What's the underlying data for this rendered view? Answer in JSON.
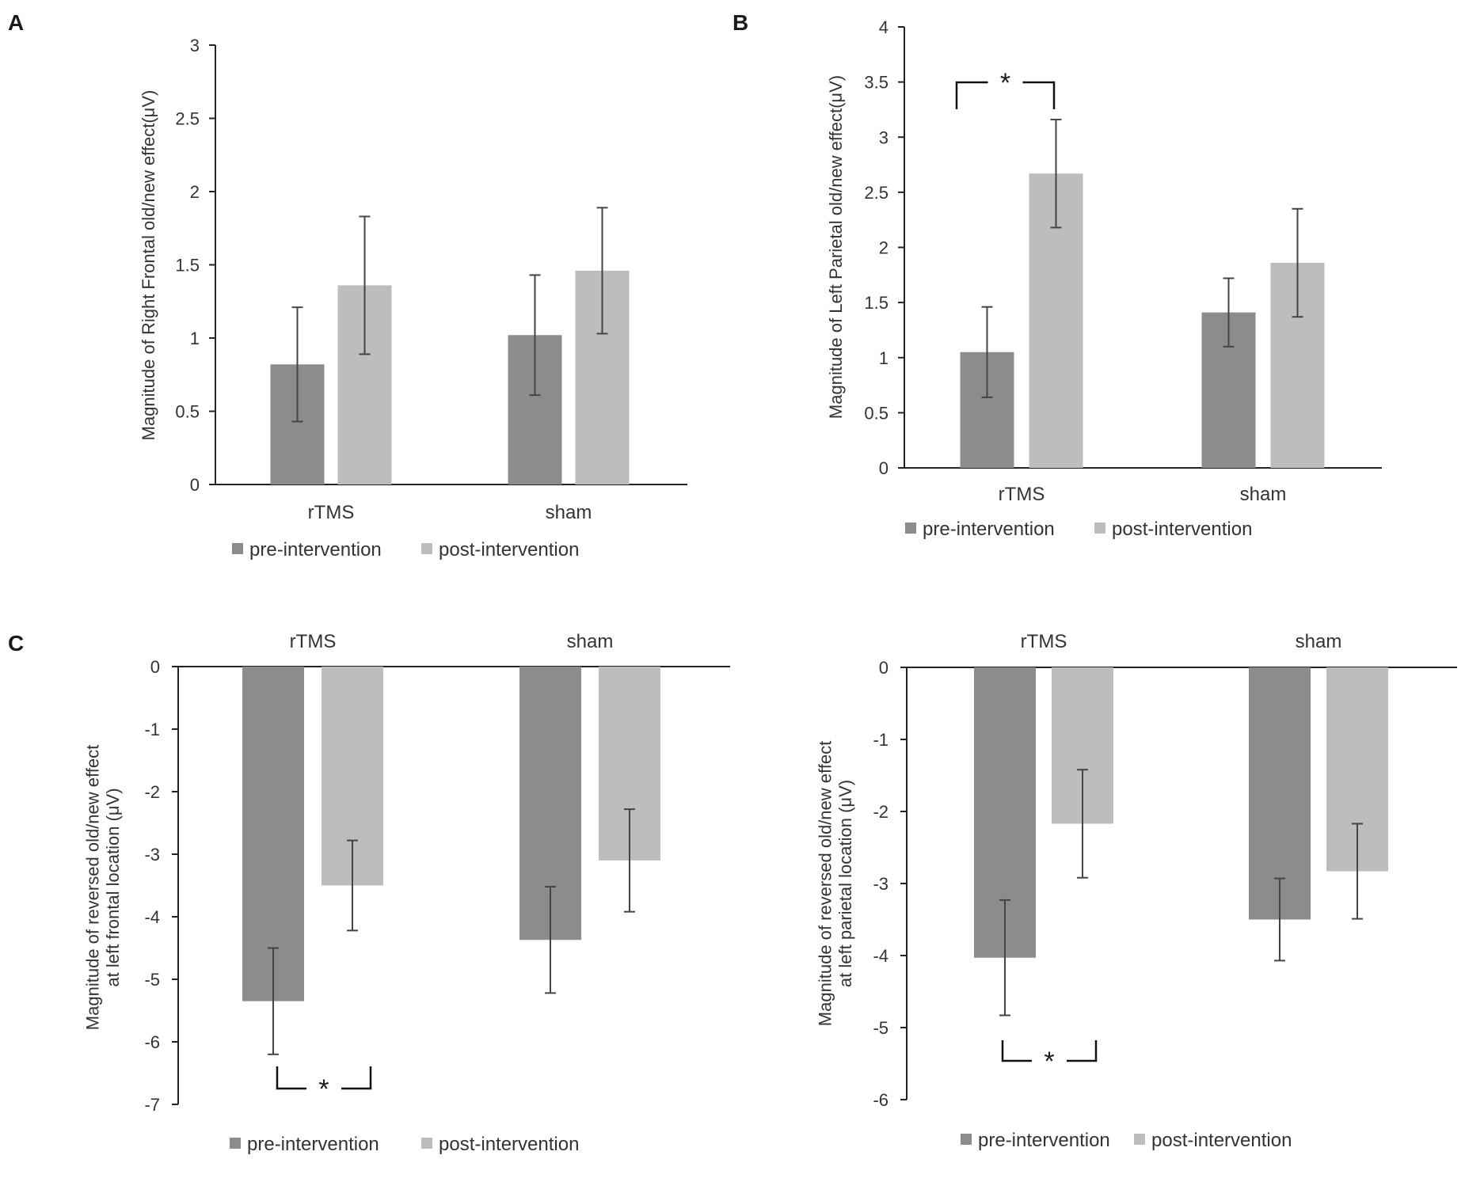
{
  "figure": {
    "background": "#ffffff",
    "colors": {
      "pre": "#8c8c8c",
      "post": "#bdbdbd",
      "axis": "#222222",
      "errorbar": "#444444"
    }
  },
  "chart_data": [
    {
      "panel": "A",
      "type": "bar",
      "title": "",
      "categories": [
        "rTMS",
        "sham"
      ],
      "series": [
        {
          "name": "pre-intervention",
          "values": [
            0.82,
            1.02
          ],
          "errors": [
            0.39,
            0.41
          ]
        },
        {
          "name": "post-intervention",
          "values": [
            1.36,
            1.46
          ],
          "errors": [
            0.47,
            0.43
          ]
        }
      ],
      "ylabel": "Magnitude of Right Frontal old/new effect(μV)",
      "xlabel": "",
      "ylim": [
        0,
        3
      ],
      "yticks": [
        "0",
        "0.5",
        "1",
        "1.5",
        "2",
        "2.5",
        "3"
      ],
      "legend": [
        "pre-intervention",
        "post-intervention"
      ],
      "legend_position": "bottom",
      "grid": false
    },
    {
      "panel": "B",
      "type": "bar",
      "title": "",
      "categories": [
        "rTMS",
        "sham"
      ],
      "series": [
        {
          "name": "pre-intervention",
          "values": [
            1.05,
            1.41
          ],
          "errors": [
            0.41,
            0.31
          ]
        },
        {
          "name": "post-intervention",
          "values": [
            2.67,
            1.86
          ],
          "errors": [
            0.49,
            0.49
          ]
        }
      ],
      "ylabel": "Magnitude of Left Parietal old/new effect(μV)",
      "xlabel": "",
      "ylim": [
        0,
        4
      ],
      "yticks": [
        "0",
        "0.5",
        "1",
        "1.5",
        "2",
        "2.5",
        "3",
        "3.5",
        "4"
      ],
      "legend": [
        "pre-intervention",
        "post-intervention"
      ],
      "legend_position": "bottom",
      "grid": false,
      "annotations": [
        {
          "text": "*",
          "between": "rTMS pre vs post",
          "position": "top"
        }
      ]
    },
    {
      "panel": "C",
      "type": "bar",
      "title": "",
      "categories": [
        "rTMS",
        "sham"
      ],
      "series": [
        {
          "name": "pre-intervention",
          "values": [
            -5.35,
            -4.37
          ],
          "errors": [
            0.85,
            0.85
          ]
        },
        {
          "name": "post-intervention",
          "values": [
            -3.5,
            -3.1
          ],
          "errors": [
            0.72,
            0.82
          ]
        }
      ],
      "ylabel": "Magnitude of reversed old/new effect at left frontal location (μV)",
      "xlabel": "",
      "ylim": [
        -7,
        0
      ],
      "yticks": [
        "-7",
        "-6",
        "-5",
        "-4",
        "-3",
        "-2",
        "-1",
        "0"
      ],
      "legend": [
        "pre-intervention",
        "post-intervention"
      ],
      "legend_position": "bottom",
      "grid": false,
      "annotations": [
        {
          "text": "*",
          "between": "rTMS pre vs post",
          "position": "bottom"
        }
      ]
    },
    {
      "panel": "",
      "type": "bar",
      "title": "",
      "categories": [
        "rTMS",
        "sham"
      ],
      "series": [
        {
          "name": "pre-intervention",
          "values": [
            -4.03,
            -3.5
          ],
          "errors": [
            0.8,
            0.57
          ]
        },
        {
          "name": "post-intervention",
          "values": [
            -2.17,
            -2.83
          ],
          "errors": [
            0.75,
            0.66
          ]
        }
      ],
      "ylabel": "Magnitude of reversed old/new effect at left parietal  location (μV)",
      "xlabel": "",
      "ylim": [
        -6,
        0
      ],
      "yticks": [
        "-6",
        "-5",
        "-4",
        "-3",
        "-2",
        "-1",
        "0"
      ],
      "legend": [
        "pre-intervention",
        "post-intervention"
      ],
      "legend_position": "bottom",
      "grid": false,
      "annotations": [
        {
          "text": "*",
          "between": "rTMS pre vs post",
          "position": "bottom"
        }
      ]
    }
  ]
}
